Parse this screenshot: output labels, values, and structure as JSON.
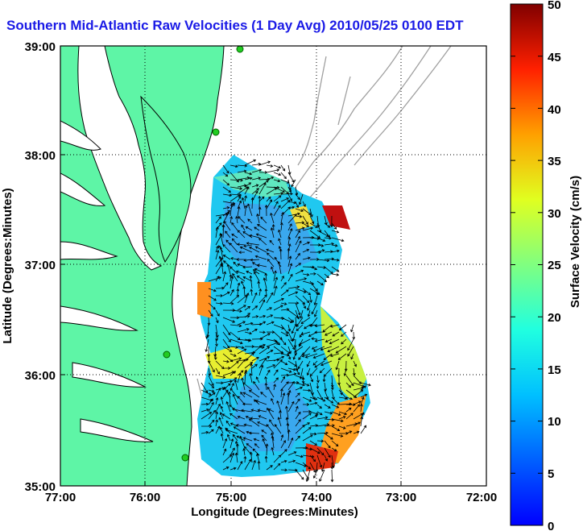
{
  "title": "Southern Mid-Atlantic Raw Velocities (1 Day Avg) 2010/05/25 0100 EDT",
  "axes": {
    "x_label": "Longitude (Degrees:Minutes)",
    "y_label": "Latitude (Degrees:Minutes)",
    "x_ticks": [
      "77:00",
      "76:00",
      "75:00",
      "74:00",
      "73:00",
      "72:00"
    ],
    "y_ticks": [
      "39:00",
      "38:00",
      "37:00",
      "36:00",
      "35:00"
    ]
  },
  "colorbar": {
    "label": "Surface Velocity (cm/s)",
    "min": 0,
    "max": 50,
    "ticks": [
      "0",
      "5",
      "10",
      "15",
      "20",
      "25",
      "30",
      "35",
      "40",
      "45",
      "50"
    ]
  },
  "colors": {
    "land": "#5ef5a6",
    "title": "#1a1ae6",
    "bathymetry": "#a0a0a0",
    "station": "#22cc22"
  }
}
